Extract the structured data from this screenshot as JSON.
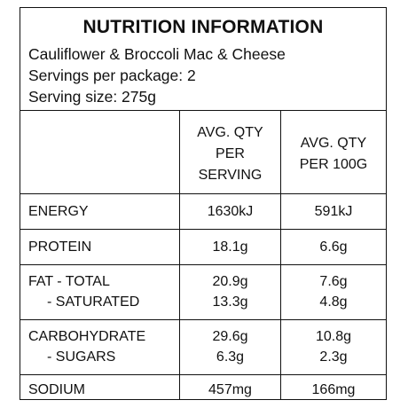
{
  "header": {
    "title": "NUTRITION INFORMATION",
    "product": "Cauliflower & Broccoli Mac & Cheese",
    "servings_per_package": "Servings per package: 2",
    "serving_size": "Serving size: 275g"
  },
  "columns": {
    "per_serving": [
      "AVG. QTY",
      "PER",
      "SERVING"
    ],
    "per_100g": [
      "AVG. QTY",
      "PER 100G"
    ]
  },
  "rows": [
    {
      "labels": [
        "ENERGY"
      ],
      "per_serving": [
        "1630kJ"
      ],
      "per_100g": [
        "591kJ"
      ]
    },
    {
      "labels": [
        "PROTEIN"
      ],
      "per_serving": [
        "18.1g"
      ],
      "per_100g": [
        "6.6g"
      ]
    },
    {
      "labels": [
        "FAT - TOTAL",
        "- SATURATED"
      ],
      "per_serving": [
        "20.9g",
        "13.3g"
      ],
      "per_100g": [
        "7.6g",
        "4.8g"
      ]
    },
    {
      "labels": [
        "CARBOHYDRATE",
        "- SUGARS"
      ],
      "per_serving": [
        "29.6g",
        "6.3g"
      ],
      "per_100g": [
        "10.8g",
        "2.3g"
      ]
    },
    {
      "labels": [
        "SODIUM"
      ],
      "per_serving": [
        "457mg"
      ],
      "per_100g": [
        "166mg"
      ]
    }
  ]
}
